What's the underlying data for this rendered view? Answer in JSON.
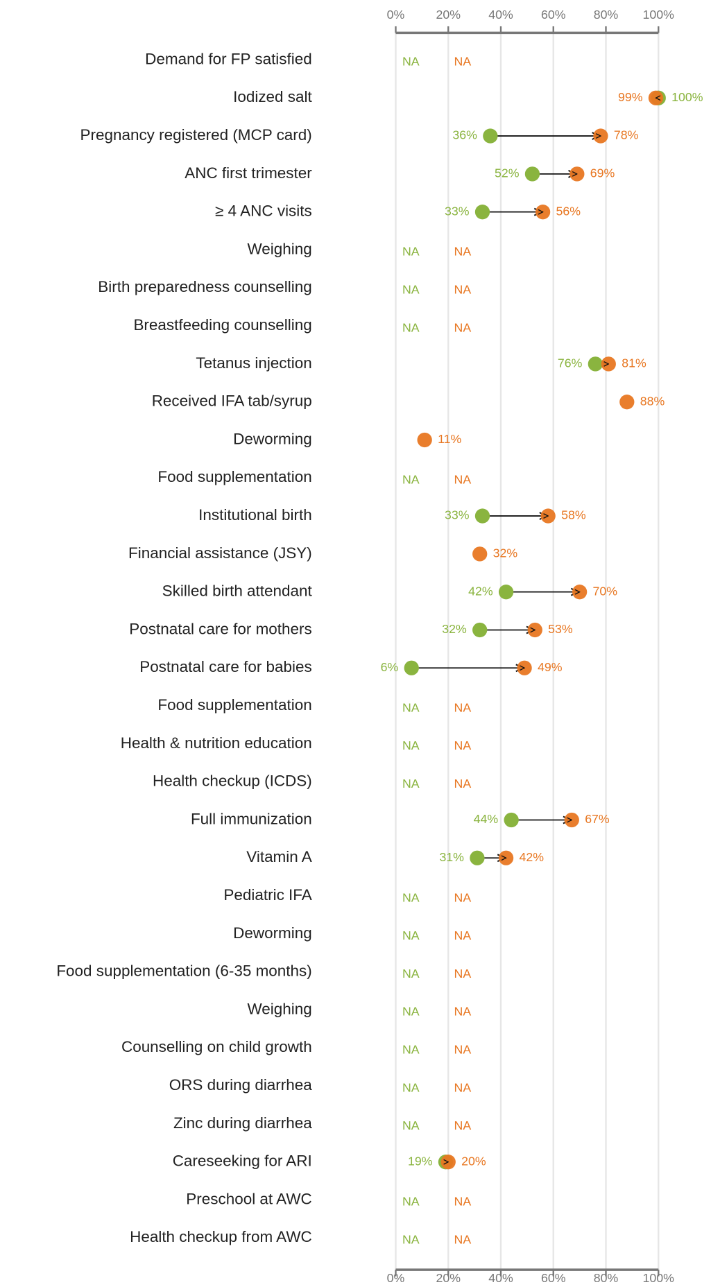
{
  "chart_data": {
    "type": "dumbbell",
    "categories": [
      "Demand for FP satisfied",
      "Iodized salt",
      "Pregnancy registered (MCP card)",
      "ANC first trimester",
      "≥ 4 ANC visits",
      "Weighing",
      "Birth preparedness counselling",
      "Breastfeeding counselling",
      "Tetanus injection",
      "Received IFA tab/syrup",
      "Deworming",
      "Food supplementation",
      "Institutional birth",
      "Financial assistance (JSY)",
      "Skilled birth attendant",
      "Postnatal care for mothers",
      "Postnatal care for babies",
      "Food supplementation",
      "Health & nutrition education",
      "Health checkup (ICDS)",
      "Full immunization",
      "Vitamin A",
      "Pediatric IFA",
      "Deworming",
      "Food supplementation (6-35 months)",
      "Weighing",
      "Counselling on child growth",
      "ORS during diarrhea",
      "Zinc during diarrhea",
      "Careseeking for ARI",
      "Preschool at AWC",
      "Health checkup from AWC"
    ],
    "series": [
      {
        "color": "#8ab43f",
        "values": [
          null,
          100,
          36,
          52,
          33,
          null,
          null,
          null,
          76,
          null,
          null,
          null,
          33,
          null,
          42,
          32,
          6,
          null,
          null,
          null,
          44,
          31,
          null,
          null,
          null,
          null,
          null,
          null,
          null,
          19,
          null,
          null
        ],
        "value_labels": [
          "NA",
          "100%",
          "36%",
          "52%",
          "33%",
          "NA",
          "NA",
          "NA",
          "76%",
          null,
          null,
          "NA",
          "33%",
          null,
          "42%",
          "32%",
          "6%",
          "NA",
          "NA",
          "NA",
          "44%",
          "31%",
          "NA",
          "NA",
          "NA",
          "NA",
          "NA",
          "NA",
          "NA",
          "19%",
          "NA",
          "NA"
        ]
      },
      {
        "color": "#e87722",
        "values": [
          null,
          99,
          78,
          69,
          56,
          null,
          null,
          null,
          81,
          88,
          11,
          null,
          58,
          32,
          70,
          53,
          49,
          null,
          null,
          null,
          67,
          42,
          null,
          null,
          null,
          null,
          null,
          null,
          null,
          20,
          null,
          null
        ],
        "value_labels": [
          "NA",
          "99%",
          "78%",
          "69%",
          "56%",
          "NA",
          "NA",
          "NA",
          "81%",
          "88%",
          "11%",
          "NA",
          "58%",
          "32%",
          "70%",
          "53%",
          "49%",
          "NA",
          "NA",
          "NA",
          "67%",
          "42%",
          "NA",
          "NA",
          "NA",
          "NA",
          "NA",
          "NA",
          "NA",
          "20%",
          "NA",
          "NA"
        ]
      }
    ],
    "xlim": [
      0,
      100
    ],
    "xticks": [
      {
        "value": 0,
        "label": "0%"
      },
      {
        "value": 20,
        "label": "20%"
      },
      {
        "value": 40,
        "label": "40%"
      },
      {
        "value": 60,
        "label": "60%"
      },
      {
        "value": 80,
        "label": "80%"
      },
      {
        "value": 100,
        "label": "100%"
      }
    ],
    "grid": true
  }
}
